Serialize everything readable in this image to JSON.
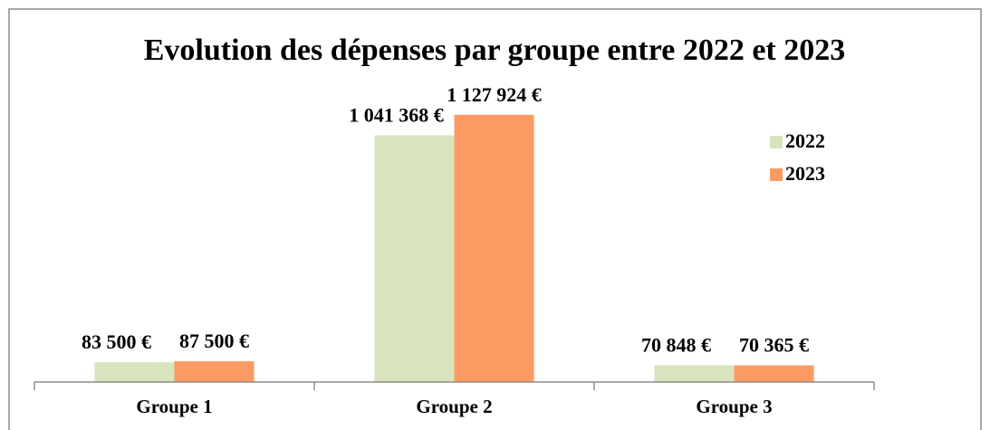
{
  "chart_data": {
    "type": "bar",
    "title": "Evolution des dépenses par groupe entre 2022 et 2023",
    "categories": [
      "Groupe 1",
      "Groupe 2",
      "Groupe 3"
    ],
    "series": [
      {
        "name": "2022",
        "color": "#d7e4bd",
        "values": [
          83500,
          1041368,
          70848
        ],
        "value_labels": [
          "83 500 €",
          "1 041 368 €",
          "70 848 €"
        ]
      },
      {
        "name": "2023",
        "color": "#fb9b63",
        "values": [
          87500,
          1127924,
          70365
        ],
        "value_labels": [
          "87 500 €",
          "1 127 924 €",
          "70 365 €"
        ]
      }
    ],
    "ylim": [
      0,
      1200000
    ],
    "legend": "right"
  }
}
